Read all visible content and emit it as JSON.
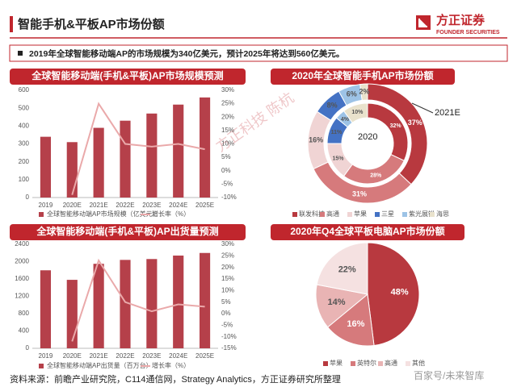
{
  "header": {
    "title": "智能手机&平板AP市场份额",
    "logo": "方正证券",
    "logo_sub": "FOUNDER SECURITIES"
  },
  "summary": "2019年全球智能移动端AP的市场规模为340亿美元，预计2025年将达到560亿美元。",
  "source": "资料来源：前瞻产业研究院，C114通信网，Strategy Analytics，方正证券研究所整理",
  "watermarks": [
    "方正科技 陈杭",
    "百家号/未来智库"
  ],
  "chart_data": [
    {
      "type": "combo",
      "title": "全球智能移动端(手机&平板)AP市场规模预测",
      "categories": [
        "2019",
        "2020E",
        "2021E",
        "2022E",
        "2023E",
        "2024E",
        "2025E"
      ],
      "series": [
        {
          "name": "全球智能移动端AP市场规模（亿美元）",
          "type": "bar",
          "color": "#b5404a",
          "values": [
            340,
            310,
            390,
            430,
            470,
            520,
            560
          ]
        },
        {
          "name": "增长率（%）",
          "type": "line",
          "axis": "y2",
          "color": "#eaa9aa",
          "values": [
            null,
            -9,
            25,
            10,
            9,
            10,
            8
          ]
        }
      ],
      "ylim": [
        0,
        600
      ],
      "yticks": [
        0,
        100,
        200,
        300,
        400,
        500,
        600
      ],
      "y2lim": [
        -10,
        30
      ],
      "y2ticks": [
        {
          "value": -10,
          "label": "-10%"
        },
        {
          "value": -5,
          "label": "-5%"
        },
        {
          "value": 0,
          "label": "0%"
        },
        {
          "value": 5,
          "label": "5%"
        },
        {
          "value": 10,
          "label": "10%"
        },
        {
          "value": 15,
          "label": "15%"
        },
        {
          "value": 20,
          "label": "20%"
        },
        {
          "value": 25,
          "label": "25%"
        },
        {
          "value": 30,
          "label": "30%"
        }
      ]
    },
    {
      "type": "donut",
      "title": "2020年全球智能手机AP市场份额",
      "categories": [
        "联发科技",
        "高通",
        "苹果",
        "三星",
        "紫光展锐",
        "海思"
      ],
      "colors": [
        "#b8393f",
        "#d67a7c",
        "#f0d4d4",
        "#4472c4",
        "#9dc3e6",
        "#e9e2cc"
      ],
      "series": [
        {
          "name": "2021E",
          "values": [
            37,
            31,
            16,
            8,
            6,
            2
          ],
          "value_labels": [
            "37%",
            "31%",
            "16%",
            "8%",
            "6%",
            "2%"
          ]
        },
        {
          "name": "2020",
          "values": [
            32,
            28,
            15,
            11,
            4,
            10
          ],
          "value_labels": [
            "32%",
            "28%",
            "15%",
            "11%",
            "4%",
            "10%"
          ]
        }
      ]
    },
    {
      "type": "combo",
      "title": "全球智能移动端(手机&平板)AP出货量预测",
      "categories": [
        "2019",
        "2020E",
        "2021E",
        "2022E",
        "2023E",
        "2024E",
        "2025E"
      ],
      "series": [
        {
          "name": "全球智能移动端AP出货量（百万台）",
          "type": "bar",
          "color": "#b5404a",
          "values": [
            1800,
            1580,
            1950,
            2040,
            2060,
            2140,
            2200
          ]
        },
        {
          "name": "增长率（%）",
          "type": "line",
          "axis": "y2",
          "color": "#eaa9aa",
          "values": [
            null,
            -12,
            23,
            5,
            1,
            4,
            3
          ]
        }
      ],
      "ylim": [
        0,
        2400
      ],
      "yticks": [
        0,
        400,
        800,
        1200,
        1600,
        2000,
        2400
      ],
      "y2lim": [
        -15,
        30
      ],
      "y2ticks": [
        {
          "value": -15,
          "label": "-15%"
        },
        {
          "value": -10,
          "label": "-10%"
        },
        {
          "value": -5,
          "label": "-5%"
        },
        {
          "value": 0,
          "label": "0%"
        },
        {
          "value": 5,
          "label": "5%"
        },
        {
          "value": 10,
          "label": "10%"
        },
        {
          "value": 15,
          "label": "15%"
        },
        {
          "value": 20,
          "label": "20%"
        },
        {
          "value": 25,
          "label": "25%"
        },
        {
          "value": 30,
          "label": "30%"
        }
      ]
    },
    {
      "type": "pie",
      "title": "2020年Q4全球平板电脑AP市场份额",
      "categories": [
        "苹果",
        "英特尔",
        "高通",
        "其他"
      ],
      "colors": [
        "#b8393f",
        "#d67a7c",
        "#e9b4b4",
        "#f5e1e1"
      ],
      "values": [
        48,
        16,
        14,
        22
      ],
      "value_labels": [
        "48%",
        "16%",
        "14%",
        "22%"
      ]
    }
  ]
}
